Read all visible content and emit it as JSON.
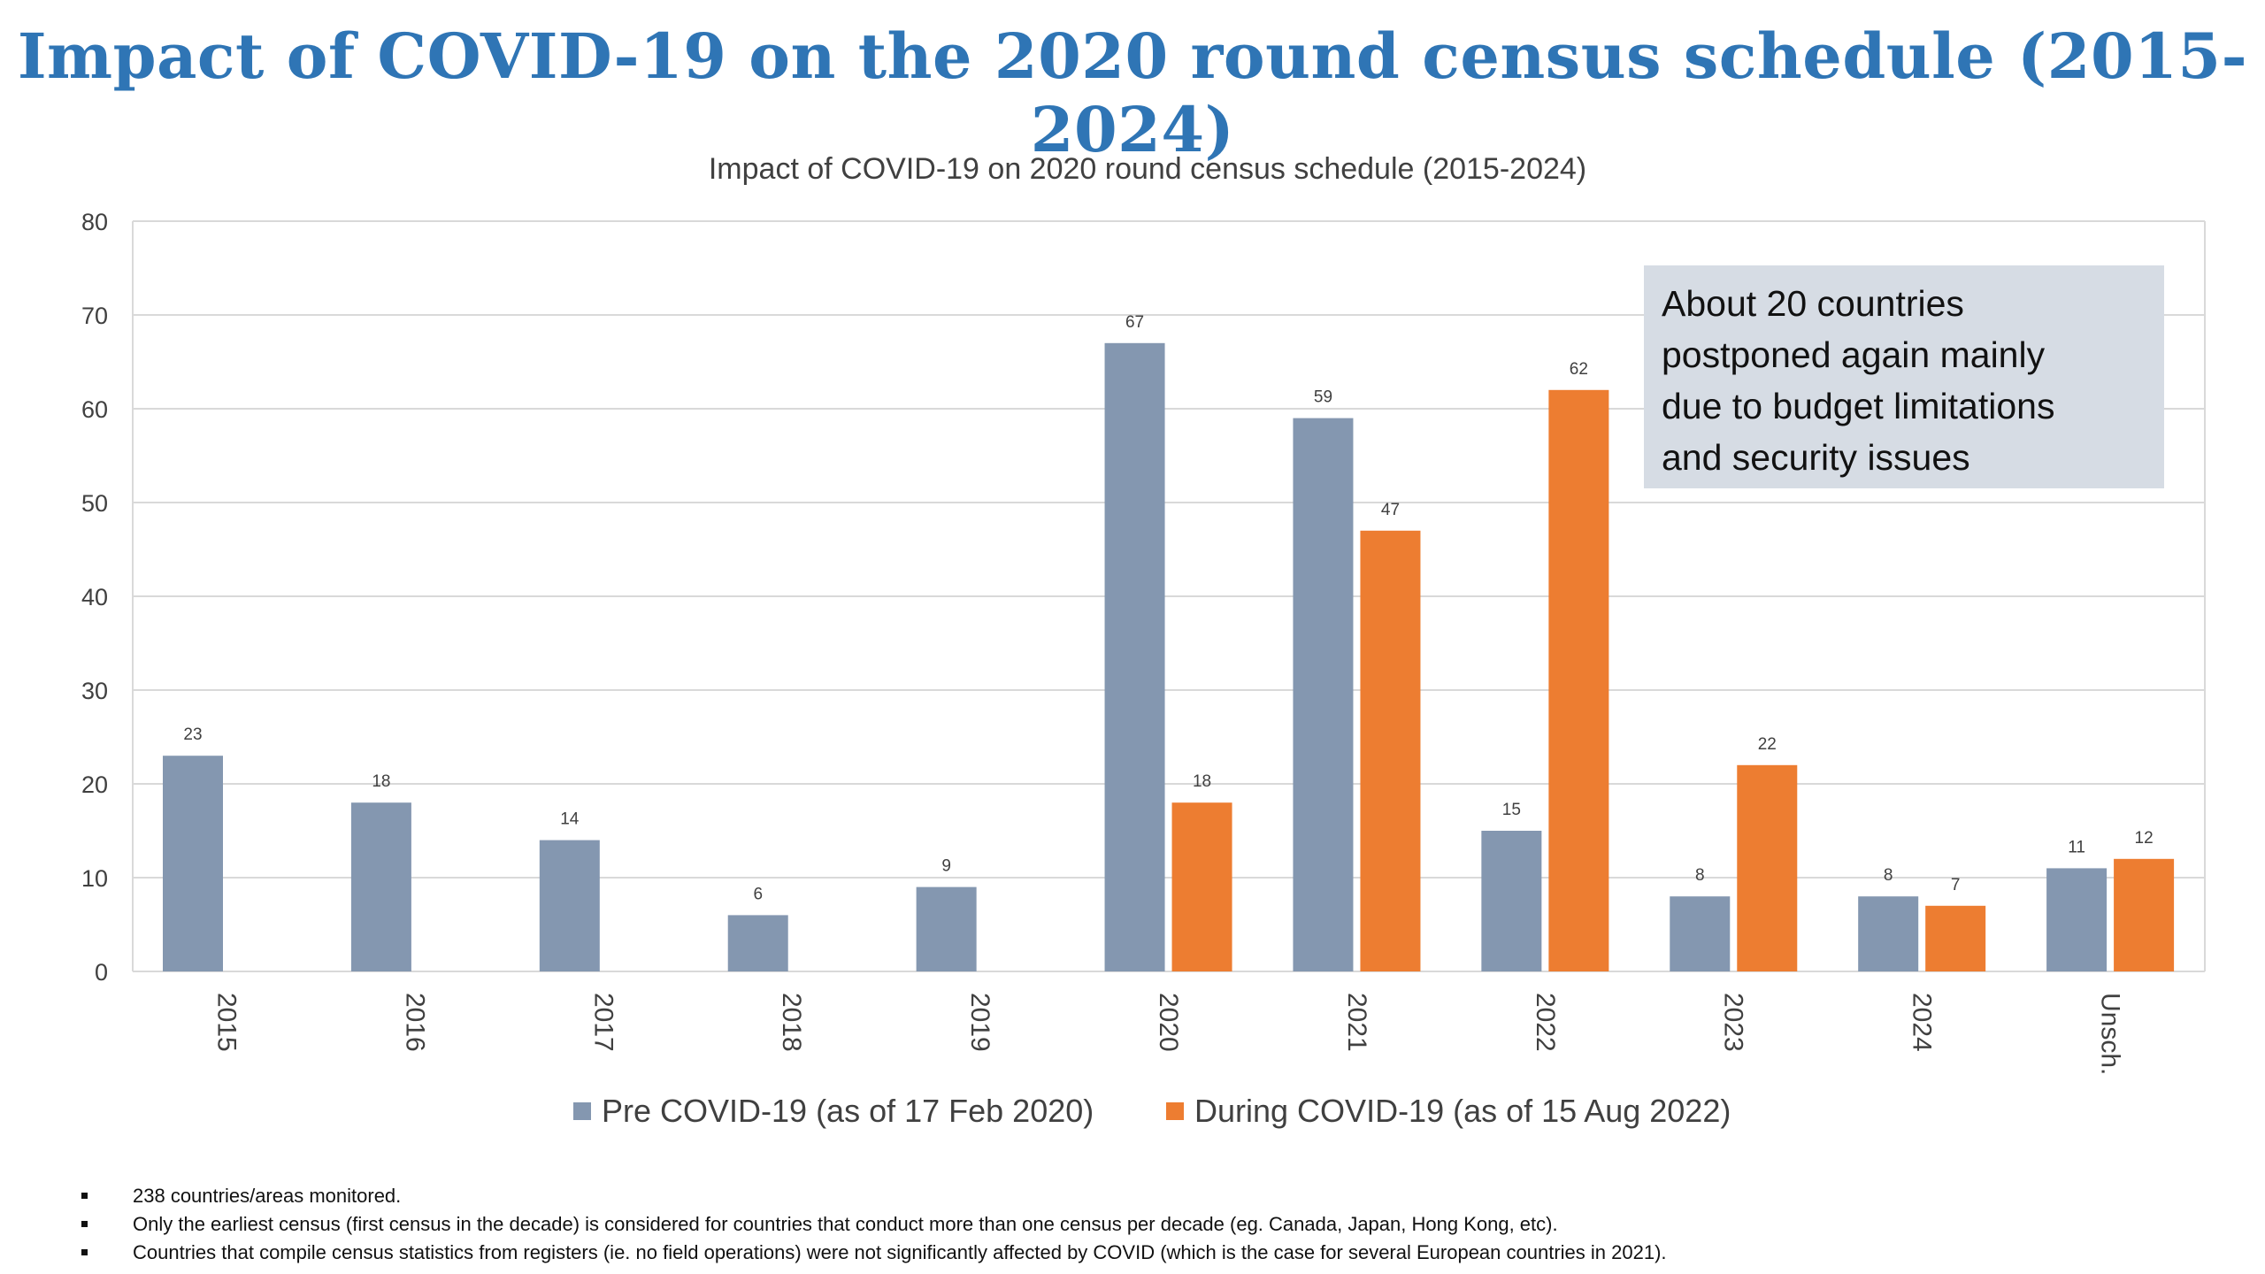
{
  "slide_title": "Impact of COVID-19 on the 2020 round census schedule (2015-2024)",
  "callout_lines": [
    "About 20 countries",
    "postponed again mainly",
    "due to budget limitations",
    "and security issues"
  ],
  "notes": [
    "238 countries/areas monitored.",
    "Only the earliest census (first census in the decade) is considered for countries that conduct more than one census per decade (eg. Canada, Japan, Hong Kong, etc).",
    "Countries that compile census statistics from registers (ie. no field operations) were not significantly affected by COVID (which is the case for several European countries in 2021)."
  ],
  "colors": {
    "title": "#2f75b5",
    "pre": "#8497b0",
    "during": "#ed7d31",
    "grid": "#d9d9d9",
    "callout_bg": "#d6dce4"
  },
  "chart_data": {
    "type": "bar",
    "title": "Impact of COVID-19 on 2020 round census schedule (2015-2024)",
    "categories": [
      "2015",
      "2016",
      "2017",
      "2018",
      "2019",
      "2020",
      "2021",
      "2022",
      "2023",
      "2024",
      "Unsch."
    ],
    "series": [
      {
        "name": "Pre COVID-19 (as of 17 Feb 2020)",
        "color": "#8497b0",
        "values": [
          23,
          18,
          14,
          6,
          9,
          67,
          59,
          15,
          8,
          8,
          11
        ]
      },
      {
        "name": "During COVID-19 (as of 15 Aug 2022)",
        "color": "#ed7d31",
        "values": [
          null,
          null,
          null,
          null,
          null,
          18,
          47,
          62,
          22,
          7,
          12
        ]
      }
    ],
    "ylim": [
      0,
      80
    ],
    "yticks": [
      0,
      10,
      20,
      30,
      40,
      50,
      60,
      70,
      80
    ],
    "grid": true,
    "legend_position": "bottom",
    "data_labels": true
  }
}
